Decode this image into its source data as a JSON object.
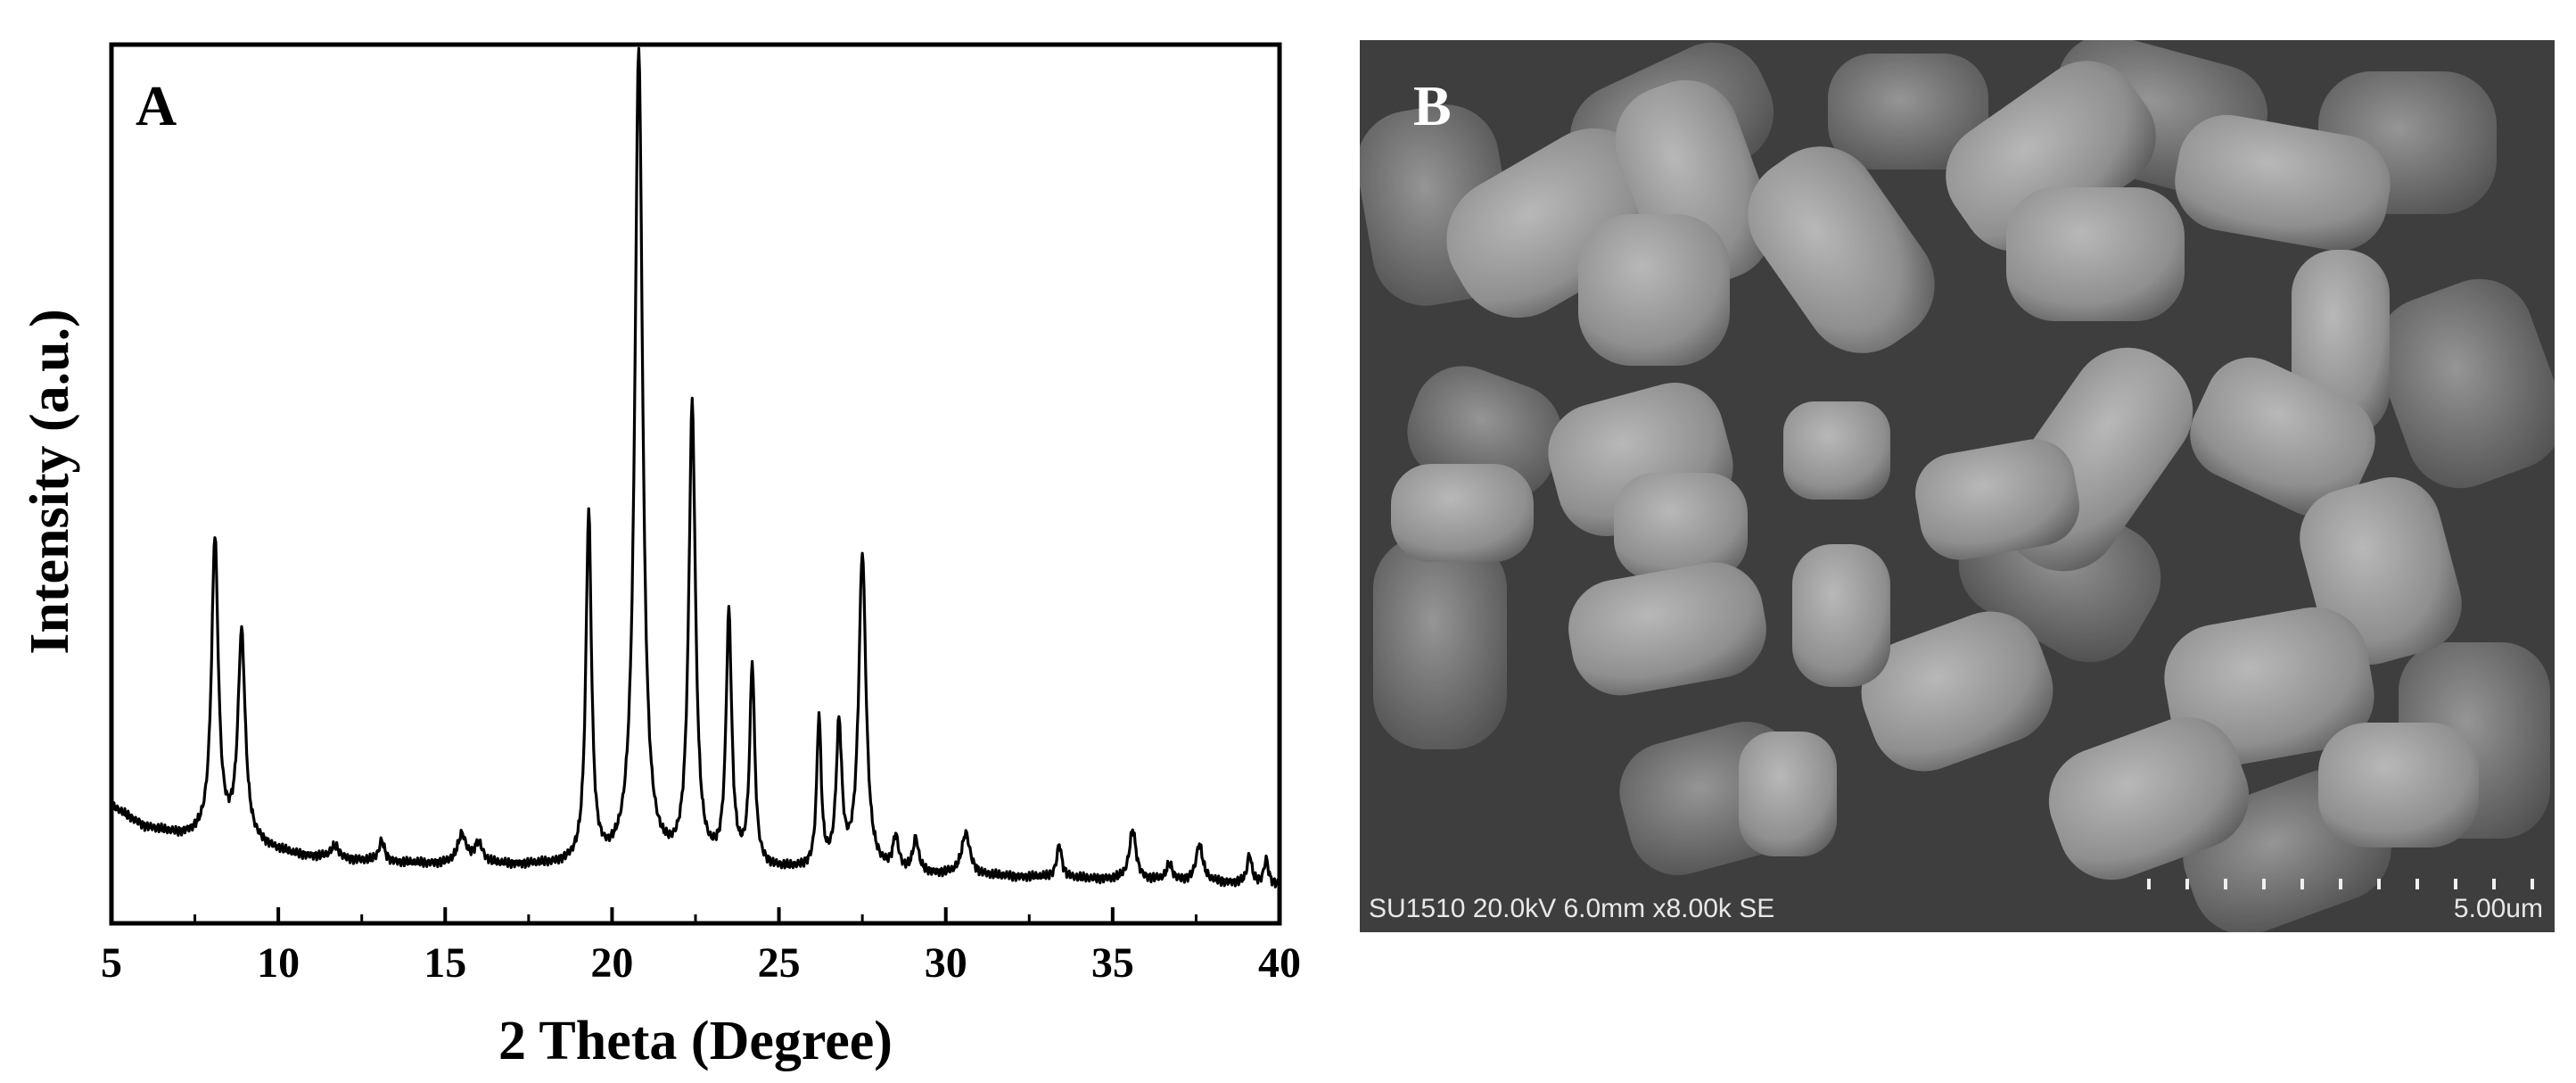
{
  "panels": {
    "xrd_label": "A",
    "sem_label": "B"
  },
  "chart_data": {
    "type": "line",
    "title": "",
    "xlabel": "2 Theta (Degree)",
    "ylabel": "Intensity (a.u.)",
    "xlim": [
      5,
      40
    ],
    "ylim": [
      0,
      100
    ],
    "xticks": [
      5,
      10,
      15,
      20,
      25,
      30,
      35,
      40
    ],
    "xtick_labels": [
      "5",
      "10",
      "15",
      "20",
      "25",
      "30",
      "35",
      "40"
    ],
    "grid": false,
    "legend": "none",
    "baseline": [
      [
        5.0,
        13.5
      ],
      [
        6.0,
        11.0
      ],
      [
        7.0,
        10.0
      ],
      [
        8.0,
        9.6
      ],
      [
        9.5,
        8.6
      ],
      [
        10.5,
        7.6
      ],
      [
        12.0,
        7.0
      ],
      [
        14.0,
        6.6
      ],
      [
        16.0,
        6.4
      ],
      [
        18.0,
        6.3
      ],
      [
        20.0,
        6.2
      ],
      [
        22.0,
        6.0
      ],
      [
        24.0,
        5.8
      ],
      [
        26.0,
        5.6
      ],
      [
        28.0,
        5.4
      ],
      [
        30.0,
        5.2
      ],
      [
        32.0,
        5.0
      ],
      [
        34.0,
        4.8
      ],
      [
        36.0,
        4.6
      ],
      [
        38.0,
        4.4
      ],
      [
        40.0,
        4.0
      ]
    ],
    "peaks": [
      {
        "x": 8.1,
        "y": 36,
        "w": 0.12
      },
      {
        "x": 8.9,
        "y": 25,
        "w": 0.13
      },
      {
        "x": 11.7,
        "y": 1.5,
        "w": 0.15
      },
      {
        "x": 13.1,
        "y": 2.5,
        "w": 0.1
      },
      {
        "x": 15.5,
        "y": 3.5,
        "w": 0.15
      },
      {
        "x": 16.0,
        "y": 2.5,
        "w": 0.15
      },
      {
        "x": 19.3,
        "y": 42,
        "w": 0.1
      },
      {
        "x": 20.8,
        "y": 98,
        "w": 0.14
      },
      {
        "x": 22.4,
        "y": 55,
        "w": 0.12
      },
      {
        "x": 23.5,
        "y": 30,
        "w": 0.1
      },
      {
        "x": 24.2,
        "y": 24,
        "w": 0.09
      },
      {
        "x": 26.2,
        "y": 18,
        "w": 0.08
      },
      {
        "x": 26.8,
        "y": 17,
        "w": 0.1
      },
      {
        "x": 27.5,
        "y": 38,
        "w": 0.13
      },
      {
        "x": 28.5,
        "y": 4,
        "w": 0.1
      },
      {
        "x": 29.1,
        "y": 4,
        "w": 0.1
      },
      {
        "x": 30.6,
        "y": 5,
        "w": 0.15
      },
      {
        "x": 33.4,
        "y": 4,
        "w": 0.09
      },
      {
        "x": 35.6,
        "y": 6,
        "w": 0.12
      },
      {
        "x": 36.7,
        "y": 2,
        "w": 0.1
      },
      {
        "x": 37.6,
        "y": 4.5,
        "w": 0.12
      },
      {
        "x": 39.1,
        "y": 3.5,
        "w": 0.08
      },
      {
        "x": 39.6,
        "y": 3,
        "w": 0.08
      }
    ]
  },
  "sem": {
    "info_text": "SU1510 20.0kV 6.0mm x8.00k SE",
    "scale_text": "5.00um",
    "colors": {
      "background": "#404040",
      "particle": "#8c8c8c",
      "highlight": "#b3b3b3",
      "shadow": "#2e2e2e"
    }
  }
}
